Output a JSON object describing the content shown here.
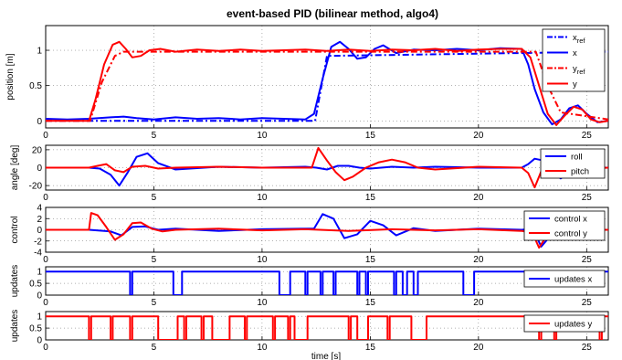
{
  "figure": {
    "title": "event-based PID (bilinear method, algo4)",
    "xlabel": "time [s]"
  },
  "chart_data": [
    {
      "type": "line",
      "ylabel": "position [m]",
      "xlim": [
        0,
        26
      ],
      "ylim": [
        -0.1,
        1.35
      ],
      "yticks": [
        0,
        0.5,
        1
      ],
      "xticks": [
        0,
        5,
        10,
        15,
        20,
        25
      ],
      "grid": true,
      "legend_position": "top-right",
      "series": [
        {
          "name": "x_ref",
          "label_main": "x",
          "label_sub": "ref",
          "color": "#0000ff",
          "dash": "dashdot",
          "x": [
            0,
            12.4,
            12.45,
            13.0,
            26
          ],
          "y": [
            0,
            0,
            0.0,
            0.92,
            0.98
          ]
        },
        {
          "name": "x",
          "label_main": "x",
          "label_sub": "",
          "color": "#0000ff",
          "dash": "solid",
          "x": [
            0,
            1,
            2,
            3,
            3.6,
            4.2,
            5,
            6,
            7,
            8,
            9,
            10,
            11,
            12,
            12.4,
            12.8,
            13.2,
            13.6,
            14.0,
            14.4,
            14.8,
            15.2,
            15.6,
            16.2,
            17,
            18,
            19,
            20,
            21,
            22,
            22.3,
            22.6,
            23.0,
            23.4,
            23.8,
            24.2,
            24.6,
            25.0,
            25.5,
            26
          ],
          "y": [
            0.03,
            0.02,
            0.03,
            0.05,
            0.06,
            0.04,
            0.02,
            0.05,
            0.03,
            0.04,
            0.02,
            0.04,
            0.03,
            0.02,
            0.1,
            0.6,
            1.05,
            1.12,
            1.02,
            0.88,
            0.9,
            1.02,
            1.07,
            0.96,
            1.01,
            1.0,
            1.02,
            1.0,
            1.03,
            1.02,
            0.8,
            0.45,
            0.12,
            -0.05,
            0.02,
            0.18,
            0.22,
            0.1,
            -0.02,
            0.0
          ]
        },
        {
          "name": "y_ref",
          "label_main": "y",
          "label_sub": "ref",
          "color": "#ff0000",
          "dash": "dashdot",
          "x": [
            0,
            2.0,
            2.05,
            2.6,
            3.2,
            3.6,
            22.6,
            22.65,
            23.2,
            23.8,
            26
          ],
          "y": [
            0,
            0,
            0.0,
            0.55,
            0.92,
            0.98,
            0.98,
            0.98,
            0.5,
            0.12,
            0.02
          ]
        },
        {
          "name": "y",
          "label_main": "y",
          "label_sub": "",
          "color": "#ff0000",
          "dash": "solid",
          "x": [
            0,
            2.0,
            2.3,
            2.7,
            3.1,
            3.4,
            3.7,
            4.0,
            4.4,
            4.8,
            5.3,
            6,
            7,
            8,
            9,
            10,
            11,
            12,
            13,
            14,
            15,
            16,
            17,
            18,
            19,
            20,
            21,
            22,
            22.4,
            22.8,
            23.2,
            23.6,
            24.0,
            24.4,
            24.8,
            25.2,
            25.6,
            26
          ],
          "y": [
            0.0,
            0.0,
            0.3,
            0.8,
            1.08,
            1.12,
            1.02,
            0.9,
            0.92,
            1.0,
            1.02,
            0.98,
            1.01,
            0.99,
            1.01,
            0.99,
            1.0,
            1.01,
            0.99,
            1.01,
            0.99,
            1.01,
            1.0,
            1.02,
            0.99,
            1.01,
            1.02,
            1.02,
            0.9,
            0.5,
            0.1,
            -0.06,
            0.08,
            0.2,
            0.16,
            0.02,
            -0.02,
            0.0
          ]
        }
      ]
    },
    {
      "type": "line",
      "ylabel": "angle [deg]",
      "xlim": [
        0,
        26
      ],
      "ylim": [
        -25,
        25
      ],
      "yticks": [
        -20,
        0,
        20
      ],
      "xticks": [
        0,
        5,
        10,
        15,
        20,
        25
      ],
      "grid": true,
      "legend_position": "top-right",
      "series": [
        {
          "name": "roll",
          "color": "#0000ff",
          "x": [
            0,
            2,
            2.5,
            3.0,
            3.4,
            3.8,
            4.2,
            4.7,
            5.2,
            6,
            8,
            10,
            12,
            12.5,
            13.0,
            13.5,
            14.0,
            14.5,
            15,
            16,
            17,
            18,
            20,
            22,
            22.3,
            22.6,
            23.0,
            23.4,
            23.8,
            24.2,
            24.8,
            25.3,
            26
          ],
          "y": [
            0,
            0,
            -1,
            -8,
            -20,
            -5,
            12,
            16,
            5,
            -2,
            1,
            0,
            1,
            0,
            -2,
            2,
            2,
            0,
            -1,
            1,
            0,
            1,
            0,
            0,
            4,
            10,
            8,
            -5,
            -12,
            -6,
            2,
            0,
            0
          ]
        },
        {
          "name": "pitch",
          "color": "#ff0000",
          "x": [
            0,
            2.0,
            2.4,
            2.8,
            3.2,
            3.6,
            4.0,
            4.6,
            5.2,
            6,
            8,
            10,
            12.3,
            12.6,
            13.0,
            13.4,
            13.8,
            14.2,
            14.8,
            15.4,
            16.0,
            16.6,
            17.2,
            18,
            20,
            22.0,
            22.3,
            22.6,
            22.9,
            23.2,
            23.6,
            24,
            25,
            26
          ],
          "y": [
            0,
            0,
            2,
            4,
            -3,
            -5,
            1,
            2,
            -1,
            0,
            1,
            0,
            0,
            22,
            8,
            -5,
            -14,
            -10,
            0,
            6,
            9,
            6,
            0,
            -2,
            1,
            0,
            -6,
            -22,
            -4,
            6,
            2,
            0,
            -1,
            0
          ]
        }
      ]
    },
    {
      "type": "line",
      "ylabel": "control",
      "xlim": [
        0,
        26
      ],
      "ylim": [
        -4,
        4
      ],
      "yticks": [
        -4,
        -2,
        0,
        2,
        4
      ],
      "xticks": [
        0,
        5,
        10,
        15,
        20,
        25
      ],
      "grid": true,
      "legend_position": "top-right",
      "series": [
        {
          "name": "control x",
          "color": "#0000ff",
          "x": [
            0,
            2,
            3,
            3.5,
            4,
            4.6,
            5.2,
            6,
            8,
            10,
            12,
            12.4,
            12.8,
            13.3,
            13.8,
            14.4,
            15.0,
            15.6,
            16.2,
            17,
            18,
            20,
            22,
            22.5,
            22.9,
            23.3,
            23.8,
            24.3,
            25,
            26
          ],
          "y": [
            0,
            0,
            -0.3,
            -1.0,
            0.5,
            0.6,
            0,
            0.2,
            -0.2,
            0.1,
            0.2,
            0.2,
            2.8,
            2.0,
            -1.5,
            -0.8,
            1.6,
            0.8,
            -1.0,
            0.3,
            -0.2,
            0.2,
            0,
            0.2,
            -3.0,
            -1.2,
            0.5,
            -0.3,
            0,
            0
          ]
        },
        {
          "name": "control y",
          "color": "#ff0000",
          "x": [
            0,
            1.5,
            2.0,
            2.1,
            2.4,
            2.8,
            3.2,
            3.6,
            4.0,
            4.4,
            4.9,
            5.4,
            6,
            8,
            10,
            12,
            14,
            16,
            18,
            20,
            22,
            22.5,
            22.8,
            23.0,
            23.4,
            23.8,
            24.3,
            25,
            26
          ],
          "y": [
            0,
            0,
            0,
            3.0,
            2.6,
            0.5,
            -1.8,
            -0.8,
            1.2,
            1.3,
            0.2,
            -0.3,
            0,
            0.2,
            -0.1,
            0.1,
            -0.2,
            0.1,
            -0.1,
            0.1,
            -0.2,
            -0.6,
            -3.2,
            -2.0,
            0.2,
            0.6,
            0.2,
            0,
            0
          ]
        }
      ]
    },
    {
      "type": "line",
      "ylabel": "updates",
      "xlim": [
        0,
        26
      ],
      "ylim": [
        0,
        1.2
      ],
      "yticks": [
        0,
        0.5,
        1
      ],
      "xticks": [
        0,
        5,
        10,
        15,
        20,
        25
      ],
      "grid": true,
      "legend_position": "top-right",
      "series": [
        {
          "name": "updates x",
          "color": "#0000ff",
          "step": true,
          "pulses": [
            [
              3.9,
              4.0
            ],
            [
              5.9,
              6.3
            ],
            [
              10.8,
              11.3
            ],
            [
              12.0,
              12.1
            ],
            [
              12.7,
              12.8
            ],
            [
              13.3,
              13.4
            ],
            [
              14.4,
              14.5
            ],
            [
              14.8,
              14.9
            ],
            [
              16.1,
              16.2
            ],
            [
              16.5,
              16.7
            ],
            [
              17.0,
              17.2
            ],
            [
              19.3,
              19.8
            ]
          ]
        }
      ]
    },
    {
      "type": "line",
      "ylabel": "updates",
      "xlim": [
        0,
        26
      ],
      "ylim": [
        0,
        1.2
      ],
      "yticks": [
        0,
        0.5,
        1
      ],
      "xticks": [
        0,
        5,
        10,
        15,
        20,
        25
      ],
      "grid": true,
      "legend_position": "top-right",
      "series": [
        {
          "name": "updates y",
          "color": "#ff0000",
          "step": true,
          "pulses": [
            [
              2.0,
              2.1
            ],
            [
              3.0,
              3.1
            ],
            [
              3.9,
              4.0
            ],
            [
              5.2,
              6.1
            ],
            [
              6.4,
              6.5
            ],
            [
              7.2,
              7.3
            ],
            [
              7.7,
              8.5
            ],
            [
              9.2,
              9.3
            ],
            [
              10.5,
              10.6
            ],
            [
              11.2,
              11.3
            ],
            [
              11.5,
              12.1
            ],
            [
              14.0,
              14.1
            ],
            [
              14.4,
              14.9
            ],
            [
              15.8,
              15.9
            ],
            [
              16.9,
              17.6
            ],
            [
              22.8,
              22.9
            ],
            [
              23.5,
              23.6
            ],
            [
              25.6,
              25.7
            ]
          ]
        }
      ]
    }
  ]
}
